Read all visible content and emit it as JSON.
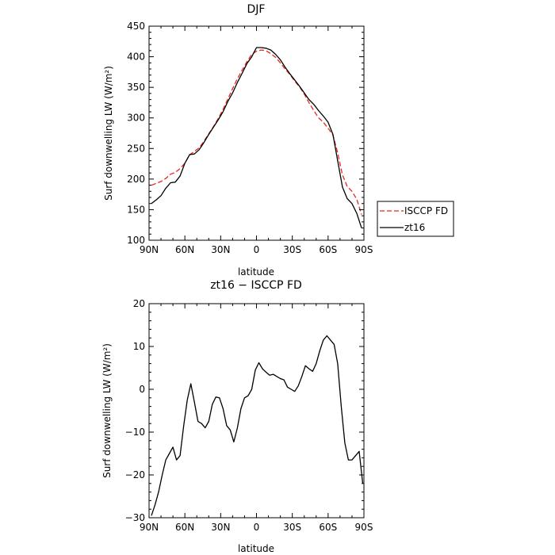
{
  "chart_data": [
    {
      "type": "line",
      "title": "DJF",
      "xlabel": "latitude",
      "ylabel": "Surf downwelling LW (W/m²)",
      "xlim": [
        -90,
        90
      ],
      "ylim": [
        100,
        450
      ],
      "xticks": [
        -90,
        -60,
        -30,
        0,
        30,
        60,
        90
      ],
      "xtick_labels": [
        "90N",
        "60N",
        "30N",
        "0",
        "30S",
        "60S",
        "90S"
      ],
      "yticks": [
        100,
        150,
        200,
        250,
        300,
        350,
        400,
        450
      ],
      "ytick_labels": [
        "100",
        "150",
        "200",
        "250",
        "300",
        "350",
        "400",
        "450"
      ],
      "grid": false,
      "legend": "right",
      "series": [
        {
          "name": "ISCCP FD",
          "color": "#e8261e",
          "dash": "dashed",
          "x": [
            -88,
            -84,
            -80,
            -76,
            -72,
            -68,
            -64,
            -60,
            -56,
            -52,
            -48,
            -44,
            -40,
            -36,
            -32,
            -28,
            -24,
            -20,
            -16,
            -12,
            -8,
            -4,
            0,
            4,
            8,
            12,
            16,
            20,
            24,
            28,
            32,
            36,
            40,
            44,
            48,
            52,
            56,
            60,
            64,
            68,
            72,
            76,
            80,
            84,
            88
          ],
          "y": [
            190,
            193,
            196,
            201,
            208,
            211,
            217,
            226,
            240,
            245,
            251,
            262,
            274,
            286,
            299,
            314,
            331,
            348,
            364,
            378,
            392,
            404,
            409,
            411,
            410,
            405,
            399,
            390,
            380,
            371,
            360,
            351,
            339,
            325,
            312,
            300,
            293,
            283,
            272,
            243,
            207,
            188,
            180,
            167,
            142
          ]
        },
        {
          "name": "zt16",
          "color": "#000000",
          "dash": "solid",
          "x": [
            -88,
            -84,
            -80,
            -76,
            -72,
            -68,
            -64,
            -60,
            -56,
            -52,
            -48,
            -44,
            -40,
            -36,
            -32,
            -28,
            -24,
            -20,
            -16,
            -12,
            -8,
            -4,
            0,
            4,
            8,
            12,
            16,
            20,
            24,
            28,
            32,
            36,
            40,
            44,
            48,
            52,
            56,
            60,
            64,
            68,
            72,
            76,
            80,
            84,
            88
          ],
          "y": [
            160,
            166,
            173,
            185,
            194,
            195,
            205,
            226,
            240,
            241,
            248,
            260,
            273,
            285,
            297,
            310,
            327,
            341,
            358,
            373,
            389,
            400,
            415,
            415,
            414,
            411,
            404,
            395,
            383,
            372,
            362,
            352,
            341,
            330,
            322,
            312,
            303,
            293,
            273,
            230,
            187,
            168,
            160,
            144,
            120
          ]
        }
      ]
    },
    {
      "type": "line",
      "title": "zt16 − ISCCP FD",
      "xlabel": "latitude",
      "ylabel": "Surf downwelling LW (W/m²)",
      "xlim": [
        -90,
        90
      ],
      "ylim": [
        -30,
        20
      ],
      "xticks": [
        -90,
        -60,
        -30,
        0,
        30,
        60,
        90
      ],
      "xtick_labels": [
        "90N",
        "60N",
        "30N",
        "0",
        "30S",
        "60S",
        "90S"
      ],
      "yticks": [
        -30,
        -20,
        -10,
        0,
        10,
        20
      ],
      "ytick_labels": [
        "−30",
        "−20",
        "−10",
        "0",
        "10",
        "20"
      ],
      "grid": false,
      "series": [
        {
          "color": "#000000",
          "dash": "solid",
          "x": [
            -88,
            -85,
            -82,
            -79,
            -76,
            -73,
            -70,
            -67,
            -64,
            -61,
            -58,
            -55,
            -52,
            -49,
            -46,
            -43,
            -40,
            -37,
            -34,
            -31,
            -28,
            -25,
            -22,
            -19,
            -16,
            -13,
            -10,
            -7,
            -4,
            -1,
            2,
            5,
            8,
            11,
            14,
            17,
            20,
            23,
            26,
            29,
            32,
            35,
            38,
            41,
            44,
            47,
            50,
            53,
            56,
            59,
            62,
            65,
            68,
            71,
            74,
            77,
            80,
            83,
            86,
            89
          ],
          "y": [
            -29.5,
            -27,
            -24,
            -20,
            -16.5,
            -15,
            -13.5,
            -16.5,
            -15.5,
            -8.5,
            -2.5,
            1.3,
            -3,
            -7.5,
            -8,
            -9,
            -7.5,
            -3.5,
            -1.8,
            -2,
            -4.5,
            -8.5,
            -9.5,
            -12.3,
            -9,
            -4.5,
            -2,
            -1.5,
            0,
            4.5,
            6.2,
            4.8,
            4,
            3.3,
            3.5,
            3,
            2.5,
            2.2,
            0.5,
            0,
            -0.5,
            0.8,
            3,
            5.5,
            4.8,
            4.2,
            6,
            9,
            11.5,
            12.5,
            11.5,
            10.5,
            6,
            -4,
            -12.5,
            -16.5,
            -16.5,
            -15.5,
            -14.5,
            -22
          ]
        }
      ]
    }
  ]
}
